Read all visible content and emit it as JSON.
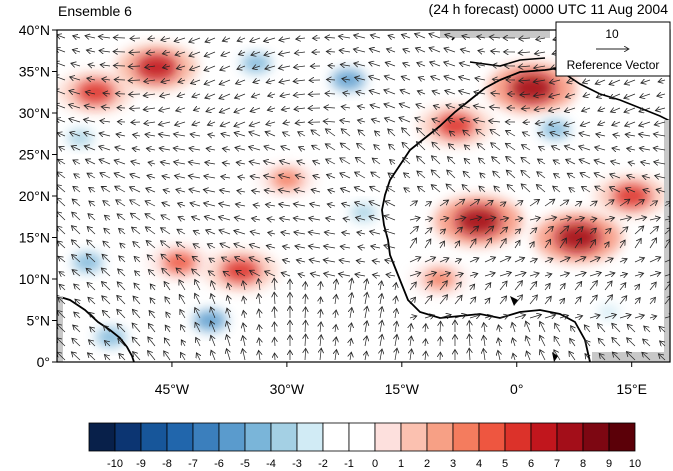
{
  "header": {
    "left_title": "Ensemble 6",
    "right_title": "(24 h forecast) 0000 UTC 11 Aug 2004"
  },
  "reference_vector": {
    "magnitude_label": "10",
    "caption": "Reference Vector"
  },
  "axes": {
    "lat_ticks": [
      "40°N",
      "35°N",
      "30°N",
      "25°N",
      "20°N",
      "15°N",
      "10°N",
      "5°N",
      "0°"
    ],
    "lon_ticks": [
      "45°W",
      "30°W",
      "15°W",
      "0°",
      "15°E"
    ],
    "lat_range": [
      0,
      40
    ],
    "lon_range": [
      -60,
      20
    ]
  },
  "colorbar": {
    "labels": [
      "-10",
      "-9",
      "-8",
      "-7",
      "-6",
      "-5",
      "-4",
      "-3",
      "-2",
      "-1",
      "0",
      "1",
      "2",
      "3",
      "4",
      "5",
      "6",
      "7",
      "8",
      "9",
      "10"
    ],
    "colors": [
      "#08204a",
      "#0c3572",
      "#17569a",
      "#2166ac",
      "#3b7fbd",
      "#5a9bcd",
      "#7ab5d9",
      "#a4d0e4",
      "#d1ebf5",
      "#ffffff",
      "#ffffff",
      "#fde0dd",
      "#fbc1b0",
      "#f7a085",
      "#f47c5e",
      "#ee5640",
      "#dc322a",
      "#c1161d",
      "#a30e19",
      "#7d0712",
      "#5b0008"
    ]
  },
  "chart_data": {
    "type": "heatmap",
    "description_units": "anomaly field with overlaid wind vectors",
    "lat_range": [
      0,
      40
    ],
    "lon_range": [
      -60,
      20
    ],
    "color_levels": [
      -10,
      -9,
      -8,
      -7,
      -6,
      -5,
      -4,
      -3,
      -2,
      -1,
      0,
      1,
      2,
      3,
      4,
      5,
      6,
      7,
      8,
      9,
      10
    ],
    "features": [
      {
        "lon": -47,
        "lat": 35.5,
        "value": 7
      },
      {
        "lon": -55,
        "lat": 32.5,
        "value": 6
      },
      {
        "lon": -22,
        "lat": 34,
        "value": -5
      },
      {
        "lon": -34,
        "lat": 36,
        "value": -4
      },
      {
        "lon": 2,
        "lat": 33,
        "value": 8
      },
      {
        "lon": -8,
        "lat": 28.5,
        "value": 6
      },
      {
        "lon": -5,
        "lat": 17,
        "value": 8
      },
      {
        "lon": 8,
        "lat": 15,
        "value": 8
      },
      {
        "lon": 15,
        "lat": 20,
        "value": 6
      },
      {
        "lon": -36,
        "lat": 11,
        "value": 6
      },
      {
        "lon": -44,
        "lat": 12,
        "value": 5
      },
      {
        "lon": -30,
        "lat": 22,
        "value": 4
      },
      {
        "lon": -56,
        "lat": 12,
        "value": -4
      },
      {
        "lon": -40,
        "lat": 5,
        "value": -5
      },
      {
        "lon": -53,
        "lat": 3,
        "value": -4
      },
      {
        "lon": 5,
        "lat": 28,
        "value": -4
      },
      {
        "lon": -57,
        "lat": 27,
        "value": -3
      },
      {
        "lon": -20,
        "lat": 18,
        "value": -3
      },
      {
        "lon": 12,
        "lat": 6,
        "value": -2
      },
      {
        "lon": -10,
        "lat": 10,
        "value": 4
      }
    ]
  }
}
